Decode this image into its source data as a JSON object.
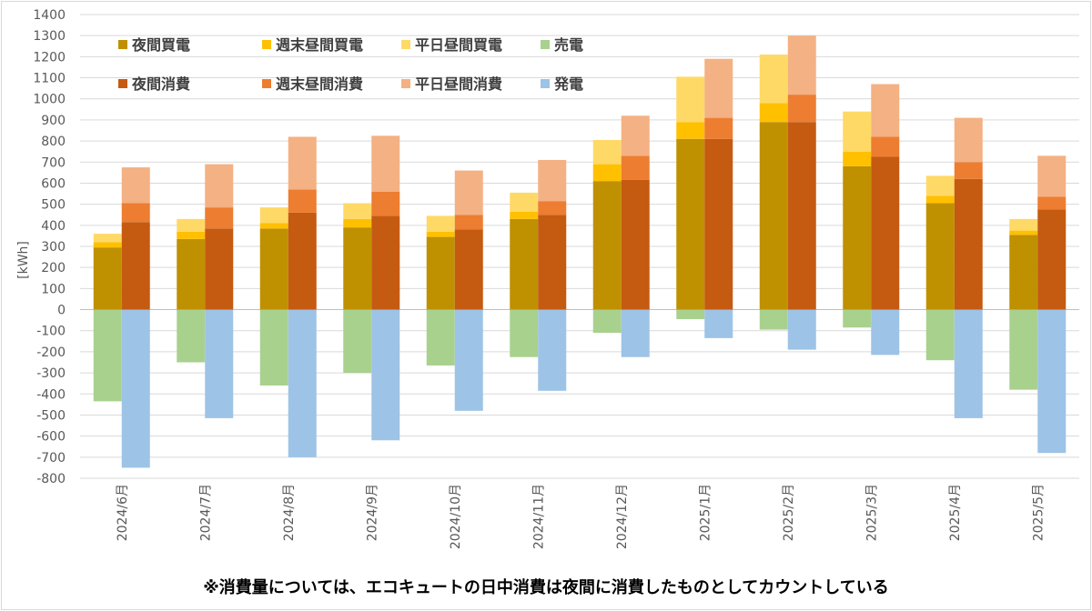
{
  "chart_data": {
    "type": "bar",
    "stacked": true,
    "grouped_pairs": true,
    "ylabel": "[kWh]",
    "ylim": [
      -800,
      1400
    ],
    "ytick_step": 100,
    "grid": true,
    "legend_position": "top-left",
    "categories": [
      "2024/6月",
      "2024/7月",
      "2024/8月",
      "2024/9月",
      "2024/10月",
      "2024/11月",
      "2024/12月",
      "2025/1月",
      "2025/2月",
      "2025/3月",
      "2025/4月",
      "2025/5月"
    ],
    "groups": [
      {
        "name": "買電・売電",
        "series": [
          {
            "name": "夜間買電",
            "color": "#BF9000",
            "values": [
              295,
              335,
              385,
              390,
              345,
              430,
              610,
              810,
              890,
              680,
              505,
              355
            ]
          },
          {
            "name": "週末昼間買電",
            "color": "#FFC000",
            "values": [
              25,
              35,
              25,
              40,
              25,
              35,
              80,
              80,
              90,
              70,
              35,
              20
            ]
          },
          {
            "name": "平日昼間買電",
            "color": "#FFD966",
            "values": [
              40,
              60,
              75,
              75,
              75,
              90,
              115,
              215,
              230,
              190,
              95,
              55
            ]
          },
          {
            "name": "売電",
            "color": "#A9D18E",
            "values": [
              -435,
              -250,
              -360,
              -300,
              -265,
              -225,
              -110,
              -45,
              -95,
              -85,
              -240,
              -380
            ]
          }
        ]
      },
      {
        "name": "消費・発電",
        "series": [
          {
            "name": "夜間消費",
            "color": "#C55A11",
            "values": [
              415,
              385,
              460,
              445,
              380,
              450,
              615,
              810,
              890,
              725,
              620,
              475
            ]
          },
          {
            "name": "週末昼間消費",
            "color": "#ED7D31",
            "values": [
              90,
              100,
              110,
              115,
              70,
              65,
              115,
              100,
              130,
              95,
              80,
              60
            ]
          },
          {
            "name": "平日昼間消費",
            "color": "#F4B183",
            "values": [
              170,
              205,
              250,
              265,
              210,
              195,
              190,
              280,
              280,
              250,
              210,
              195
            ]
          },
          {
            "name": "発電",
            "color": "#9DC3E6",
            "values": [
              -750,
              -515,
              -700,
              -620,
              -480,
              -385,
              -225,
              -135,
              -190,
              -215,
              -515,
              -680
            ]
          }
        ]
      }
    ],
    "legend": {
      "row1": [
        {
          "label": "夜間買電",
          "color": "#BF9000"
        },
        {
          "label": "週末昼間買電",
          "color": "#FFC000"
        },
        {
          "label": "平日昼間買電",
          "color": "#FFD966"
        },
        {
          "label": "売電",
          "color": "#A9D18E"
        }
      ],
      "row2": [
        {
          "label": "夜間消費",
          "color": "#C55A11"
        },
        {
          "label": "週末昼間消費",
          "color": "#ED7D31"
        },
        {
          "label": "平日昼間消費",
          "color": "#F4B183"
        },
        {
          "label": "発電",
          "color": "#9DC3E6"
        }
      ]
    },
    "footnote": "※消費量については、エコキュートの日中消費は夜間に消費したものとしてカウントしている"
  }
}
